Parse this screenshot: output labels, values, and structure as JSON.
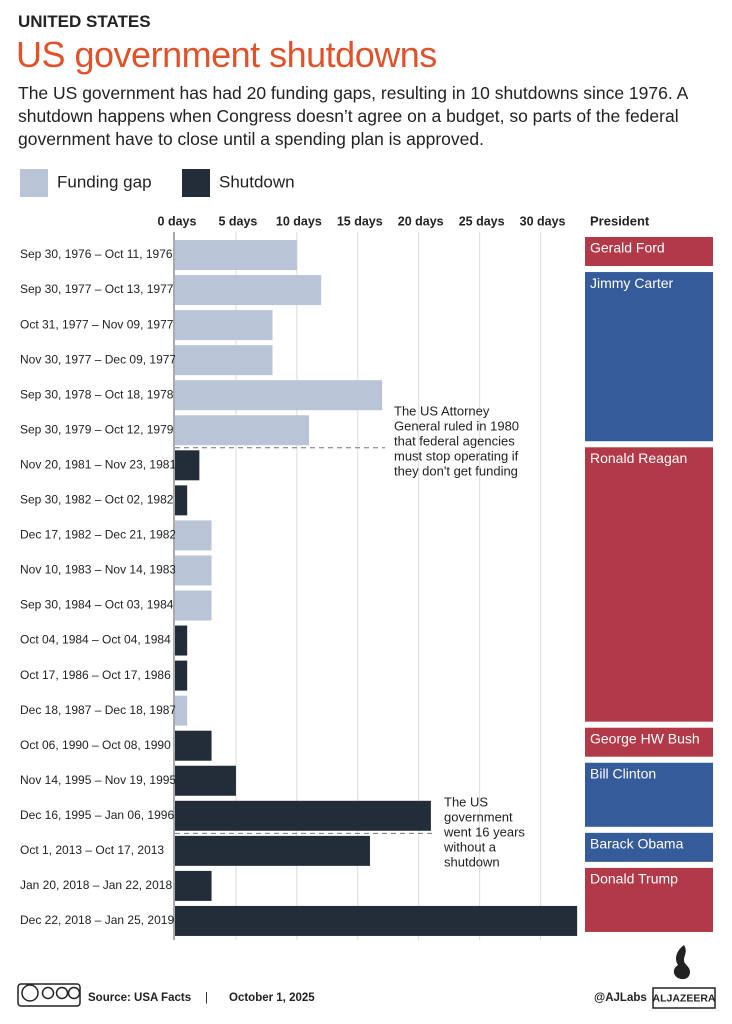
{
  "chart_data": {
    "type": "hbar",
    "kicker": "UNITED STATES",
    "title": "US government shutdowns",
    "subtitle": "The US government has had 20 funding gaps, resulting in 10 shutdowns since 1976. A shutdown happens when Congress doesn’t agree on a budget, so parts of the federal government have to close until a spending plan is approved.",
    "categories": [
      "Sep 30, 1976 – Oct 11, 1976",
      "Sep 30, 1977 – Oct 13, 1977",
      "Oct 31, 1977 – Nov 09, 1977",
      "Nov 30, 1977 – Dec 09, 1977",
      "Sep 30, 1978 – Oct 18, 1978",
      "Sep 30, 1979 – Oct 12, 1979",
      "Nov 20, 1981 – Nov 23, 1981",
      "Sep 30, 1982 – Oct 02, 1982",
      "Dec 17, 1982 – Dec 21, 1982",
      "Nov 10, 1983 – Nov 14, 1983",
      "Sep 30, 1984 – Oct 03, 1984",
      "Oct 04, 1984 – Oct 04, 1984",
      "Oct 17, 1986 – Oct 17, 1986",
      "Dec 18, 1987 – Dec 18, 1987",
      "Oct 06, 1990 – Oct 08, 1990",
      "Nov 14, 1995 – Nov 19, 1995",
      "Dec 16, 1995 – Jan 06, 1996",
      "Oct 1, 2013 – Oct 17, 2013",
      "Jan 20, 2018 – Jan 22, 2018",
      "Dec 22, 2018 – Jan 25, 2019"
    ],
    "series": [
      {
        "name": "Funding gap",
        "color": "#b9c5d7",
        "values": [
          10,
          12,
          8,
          8,
          17,
          11,
          null,
          null,
          3,
          3,
          3,
          null,
          null,
          1,
          null,
          null,
          null,
          null,
          null,
          null
        ]
      },
      {
        "name": "Shutdown",
        "color": "#232c39",
        "values": [
          null,
          null,
          null,
          null,
          null,
          null,
          2,
          1,
          null,
          null,
          null,
          1,
          1,
          null,
          3,
          5,
          21,
          16,
          3,
          33
        ]
      }
    ],
    "xlim": [
      0,
      33.4
    ],
    "xticks": [
      {
        "value": 0,
        "label": "0 days"
      },
      {
        "value": 5,
        "label": "5 days"
      },
      {
        "value": 10,
        "label": "10 days"
      },
      {
        "value": 15,
        "label": "15 days"
      },
      {
        "value": 20,
        "label": "20 days"
      },
      {
        "value": 25,
        "label": "25 days"
      },
      {
        "value": 30,
        "label": "30 days"
      }
    ],
    "grid": true,
    "president_header": "President",
    "presidents": [
      "Gerald Ford",
      "Jimmy Carter",
      "Jimmy Carter",
      "Jimmy Carter",
      "Jimmy Carter",
      "Jimmy Carter",
      "Ronald Reagan",
      "Ronald Reagan",
      "Ronald Reagan",
      "Ronald Reagan",
      "Ronald Reagan",
      "Ronald Reagan",
      "Ronald Reagan",
      "Ronald Reagan",
      "George HW Bush",
      "Bill Clinton",
      "Bill Clinton",
      "Barack Obama",
      "Donald Trump",
      "Donald Trump"
    ],
    "president_colors": [
      "#b23a48",
      "#365b9b",
      "#365b9b",
      "#365b9b",
      "#365b9b",
      "#365b9b",
      "#b23a48",
      "#b23a48",
      "#b23a48",
      "#b23a48",
      "#b23a48",
      "#b23a48",
      "#b23a48",
      "#b23a48",
      "#b23a48",
      "#365b9b",
      "#365b9b",
      "#365b9b",
      "#b23a48",
      "#b23a48"
    ],
    "annotations": [
      [
        "The US Attorney",
        "General ruled in 1980",
        "that federal agencies",
        "must stop operating if",
        "they don't get funding"
      ],
      [
        "The US",
        "government",
        "went 16 years",
        "without a",
        "shutdown"
      ]
    ],
    "footer": {
      "source": "Source:  USA Facts",
      "separator": "|",
      "date": "October 1, 2025",
      "handle": "@AJLabs",
      "brand": "ALJAZEERA"
    }
  }
}
